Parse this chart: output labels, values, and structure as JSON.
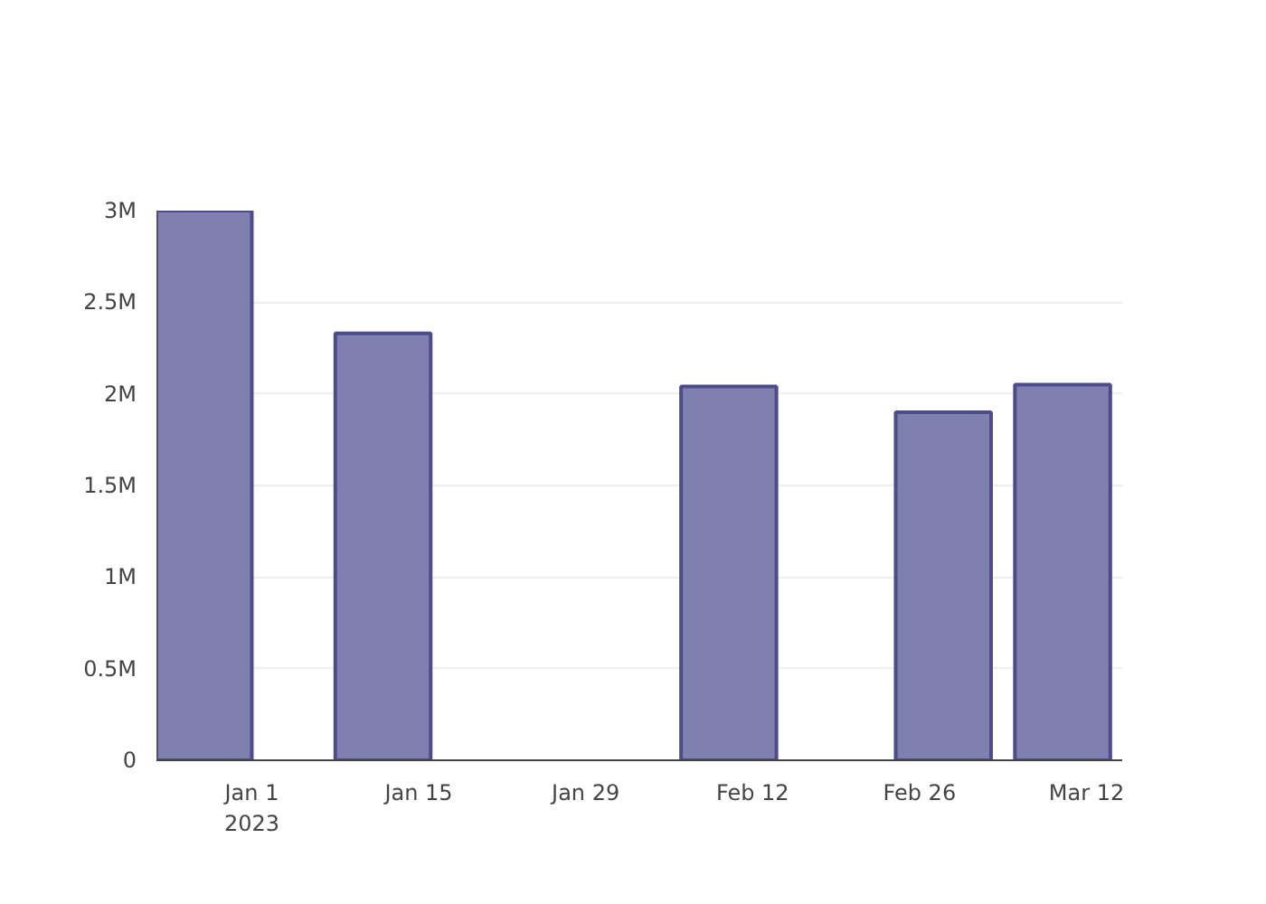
{
  "chart_data": {
    "type": "bar",
    "x": [
      "2022-12-28",
      "2023-01-12",
      "2023-02-10",
      "2023-02-28",
      "2023-03-10"
    ],
    "values": [
      3000000,
      2330000,
      2040000,
      1900000,
      2050000
    ],
    "color": "#7f7fb0",
    "xlim": [
      "2022-12-24",
      "2023-03-15"
    ],
    "xticks": [
      {
        "value": "2023-01-01",
        "label": "Jan 1\n2023"
      },
      {
        "value": "2023-01-15",
        "label": "Jan 15"
      },
      {
        "value": "2023-01-29",
        "label": "Jan 29"
      },
      {
        "value": "2023-02-12",
        "label": "Feb 12"
      },
      {
        "value": "2023-02-26",
        "label": "Feb 26"
      },
      {
        "value": "2023-03-12",
        "label": "Mar 12"
      }
    ],
    "ylim": [
      0,
      3000000
    ],
    "yticks": [
      {
        "value": 0,
        "label": "0"
      },
      {
        "value": 500000,
        "label": "0.5M"
      },
      {
        "value": 1000000,
        "label": "1M"
      },
      {
        "value": 1500000,
        "label": "1.5M"
      },
      {
        "value": 2000000,
        "label": "2M"
      },
      {
        "value": 2500000,
        "label": "2.5M"
      },
      {
        "value": 3000000,
        "label": "3M"
      }
    ],
    "grid": "y"
  }
}
